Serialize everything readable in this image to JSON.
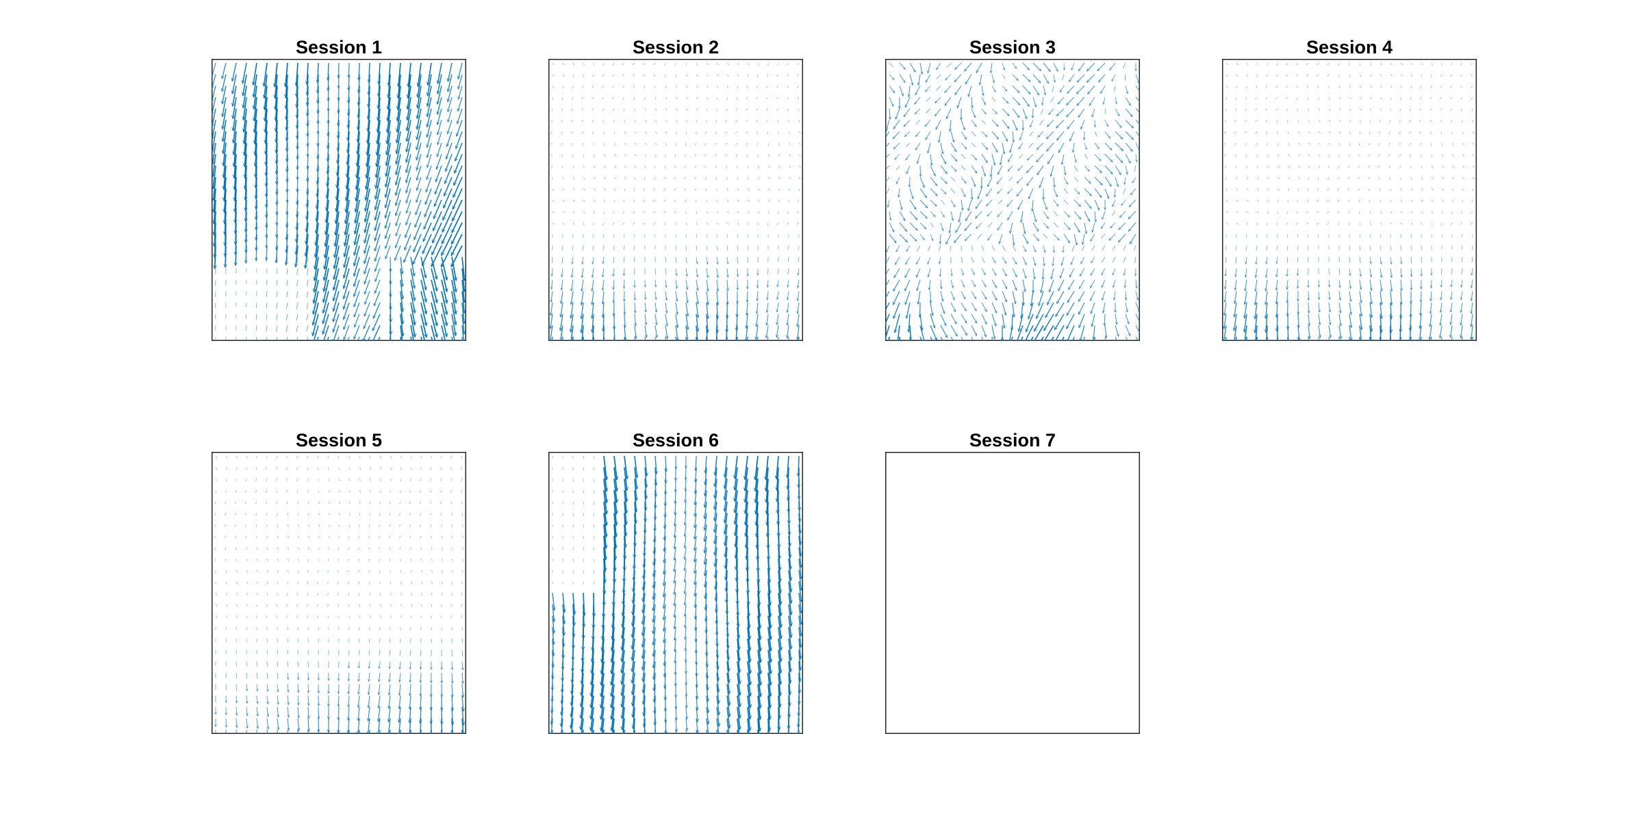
{
  "colors": {
    "arrow": "#0072BD",
    "axes_border": "#262626",
    "background": "#ffffff"
  },
  "chart_data": [
    {
      "type": "quiver",
      "title": "Session 1",
      "pattern": "global-diagonal-strong",
      "grid": false,
      "ticks": false,
      "empty": false
    },
    {
      "type": "quiver",
      "title": "Session 2",
      "pattern": "bottom-vertical-band",
      "grid": false,
      "ticks": false,
      "empty": false
    },
    {
      "type": "quiver",
      "title": "Session 3",
      "pattern": "bottom-vertical-band-sparse",
      "grid": false,
      "ticks": false,
      "empty": false
    },
    {
      "type": "quiver",
      "title": "Session 4",
      "pattern": "bottom-vertical-band",
      "grid": false,
      "ticks": false,
      "empty": false
    },
    {
      "type": "quiver",
      "title": "Session 5",
      "pattern": "bottom-right-vertical",
      "grid": false,
      "ticks": false,
      "empty": false
    },
    {
      "type": "quiver",
      "title": "Session 6",
      "pattern": "global-vertical-strong",
      "grid": false,
      "ticks": false,
      "empty": false
    },
    {
      "type": "quiver",
      "title": "Session 7",
      "pattern": "none",
      "grid": false,
      "ticks": false,
      "empty": true
    }
  ]
}
